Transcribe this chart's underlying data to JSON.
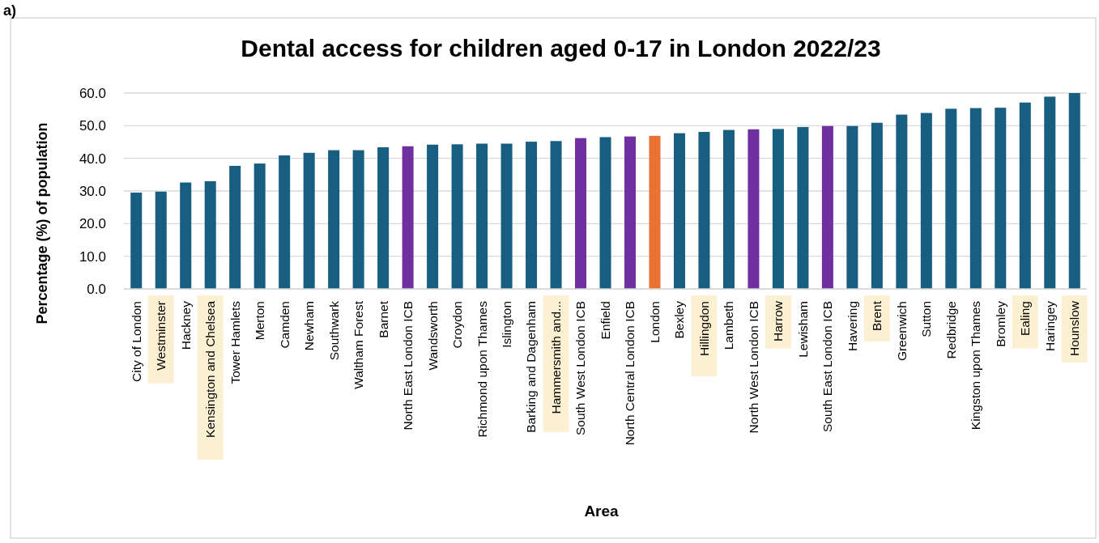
{
  "chart_data": {
    "type": "bar",
    "title": "Dental access for children aged 0-17 in London 2022/23",
    "xlabel": "Area",
    "ylabel": "Percentage (%) of population",
    "annotations": [
      "a)"
    ],
    "categories": [
      "City of London",
      "Westminster",
      "Hackney",
      "Kensington and Chelsea",
      "Tower Hamlets",
      "Merton",
      "Camden",
      "Newham",
      "Southwark",
      "Waltham Forest",
      "Barnet",
      "North East London ICB",
      "Wandsworth",
      "Croydon",
      "Richmond upon Thames",
      "Islington",
      "Barking and Dagenham",
      "Hammersmith and...",
      "South West London ICB",
      "Enfield",
      "North Central London ICB",
      "London",
      "Bexley",
      "Hillingdon",
      "Lambeth",
      "North West London ICB",
      "Harrow",
      "Lewisham",
      "South East London ICB",
      "Havering",
      "Brent",
      "Greenwich",
      "Sutton",
      "Redbridge",
      "Kingston upon Thames",
      "Bromley",
      "Ealing",
      "Haringey",
      "Hounslow"
    ],
    "values": [
      29.5,
      29.8,
      32.6,
      33.0,
      37.7,
      38.4,
      40.9,
      41.7,
      42.5,
      42.5,
      43.4,
      43.7,
      44.2,
      44.3,
      44.5,
      44.5,
      45.1,
      45.3,
      46.2,
      46.5,
      46.7,
      46.9,
      47.7,
      48.1,
      48.7,
      48.9,
      49.0,
      49.6,
      49.9,
      49.9,
      50.9,
      53.4,
      53.9,
      55.2,
      55.4,
      55.5,
      57.1,
      58.9,
      60.0
    ],
    "colors": [
      "#175e81",
      "#175e81",
      "#175e81",
      "#175e81",
      "#175e81",
      "#175e81",
      "#175e81",
      "#175e81",
      "#175e81",
      "#175e81",
      "#175e81",
      "#7030a0",
      "#175e81",
      "#175e81",
      "#175e81",
      "#175e81",
      "#175e81",
      "#175e81",
      "#7030a0",
      "#175e81",
      "#7030a0",
      "#e97132",
      "#175e81",
      "#175e81",
      "#175e81",
      "#7030a0",
      "#175e81",
      "#175e81",
      "#7030a0",
      "#175e81",
      "#175e81",
      "#175e81",
      "#175e81",
      "#175e81",
      "#175e81",
      "#175e81",
      "#175e81",
      "#175e81",
      "#175e81"
    ],
    "ylim": [
      0,
      60
    ],
    "yticks": [
      {
        "value": 0,
        "label": "0.0"
      },
      {
        "value": 10,
        "label": "10.0"
      },
      {
        "value": 20,
        "label": "20.0"
      },
      {
        "value": 30,
        "label": "30.0"
      },
      {
        "value": 40,
        "label": "40.0"
      },
      {
        "value": 50,
        "label": "50.0"
      },
      {
        "value": 60,
        "label": "60.0"
      }
    ],
    "grid": "y"
  }
}
